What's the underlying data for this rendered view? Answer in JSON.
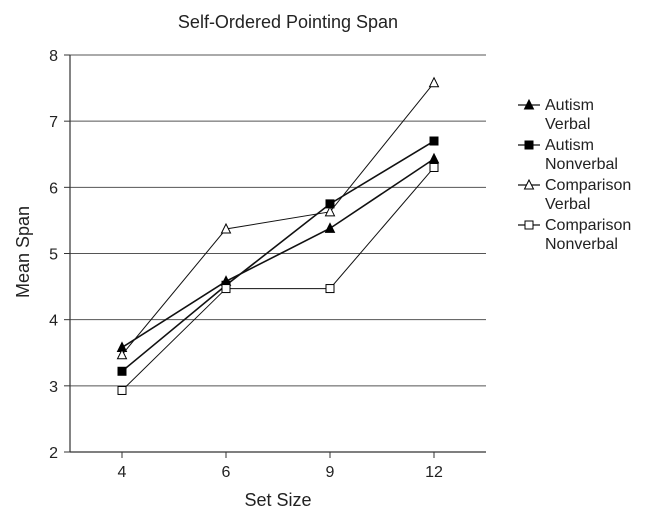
{
  "chart_data": {
    "type": "line",
    "title": "Self-Ordered Pointing Span",
    "xlabel": "Set Size",
    "ylabel": "Mean Span",
    "categories": [
      "4",
      "6",
      "9",
      "12"
    ],
    "ylim": [
      2,
      8
    ],
    "yticks": [
      2,
      3,
      4,
      5,
      6,
      7,
      8
    ],
    "grid": "horizontal",
    "legend_position": "right",
    "series": [
      {
        "name_line1": "Autism",
        "name_line2": "Verbal",
        "marker": "filled-triangle",
        "values": [
          3.58,
          4.58,
          5.38,
          6.43
        ]
      },
      {
        "name_line1": "Autism",
        "name_line2": "Nonverbal",
        "marker": "filled-square",
        "values": [
          3.22,
          4.52,
          5.75,
          6.7
        ]
      },
      {
        "name_line1": "Comparison",
        "name_line2": "Verbal",
        "marker": "open-triangle",
        "values": [
          3.47,
          5.37,
          5.63,
          7.58
        ]
      },
      {
        "name_line1": "Comparison",
        "name_line2": "Nonverbal",
        "marker": "open-square",
        "values": [
          2.93,
          4.47,
          4.47,
          6.3
        ]
      }
    ]
  }
}
